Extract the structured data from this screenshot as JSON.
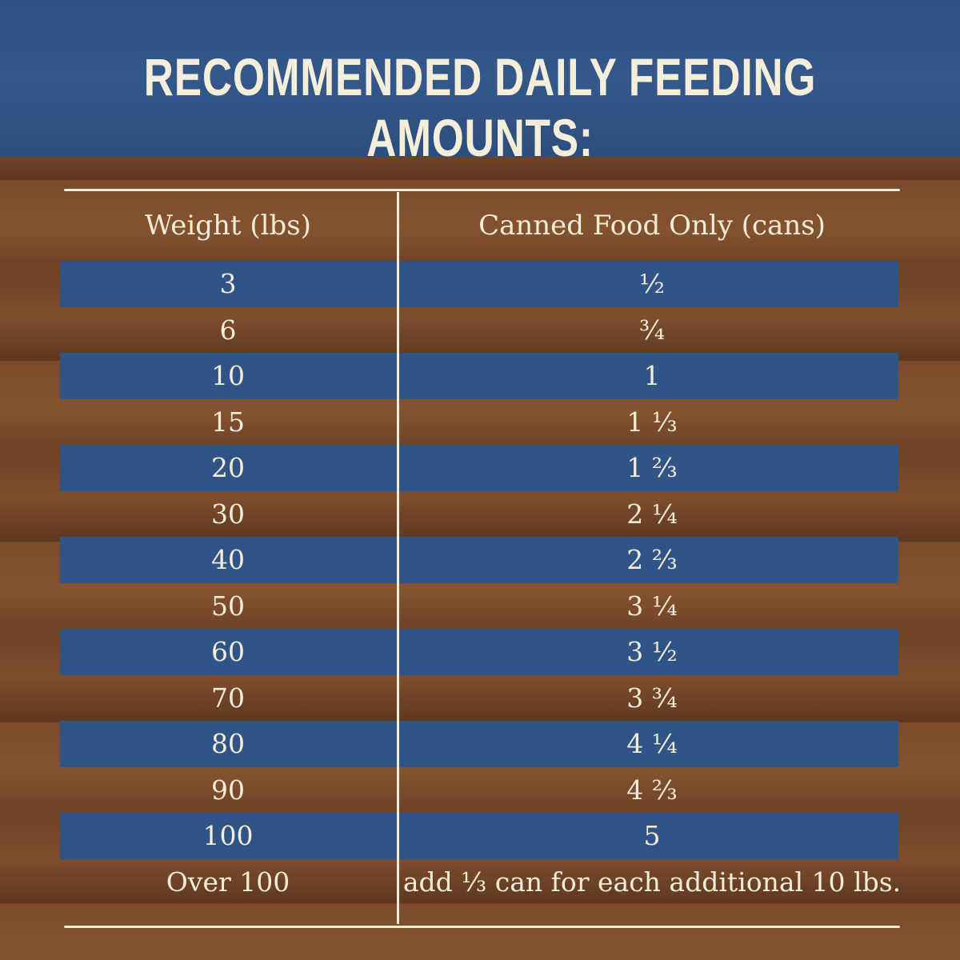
{
  "title": "RECOMMENDED DAILY FEEDING AMOUNTS:",
  "columns": [
    "Weight (lbs)",
    "Canned Food Only (cans)"
  ],
  "rows": [
    {
      "weight": "3",
      "cans": "½"
    },
    {
      "weight": "6",
      "cans": "¾"
    },
    {
      "weight": "10",
      "cans": "1"
    },
    {
      "weight": "15",
      "cans": "1 ⅓"
    },
    {
      "weight": "20",
      "cans": "1 ⅔"
    },
    {
      "weight": "30",
      "cans": "2 ¼"
    },
    {
      "weight": "40",
      "cans": "2 ⅔"
    },
    {
      "weight": "50",
      "cans": "3 ¼"
    },
    {
      "weight": "60",
      "cans": "3 ½"
    },
    {
      "weight": "70",
      "cans": "3 ¾"
    },
    {
      "weight": "80",
      "cans": "4 ¼"
    },
    {
      "weight": "90",
      "cans": "4 ⅔"
    },
    {
      "weight": "100",
      "cans": "5"
    },
    {
      "weight": "Over 100",
      "cans": "add ⅓ can for each additional 10 lbs."
    }
  ],
  "colors": {
    "header_blue": "#2f5588",
    "wood": "#7b4b2c",
    "cream": "#f3ecd8"
  }
}
